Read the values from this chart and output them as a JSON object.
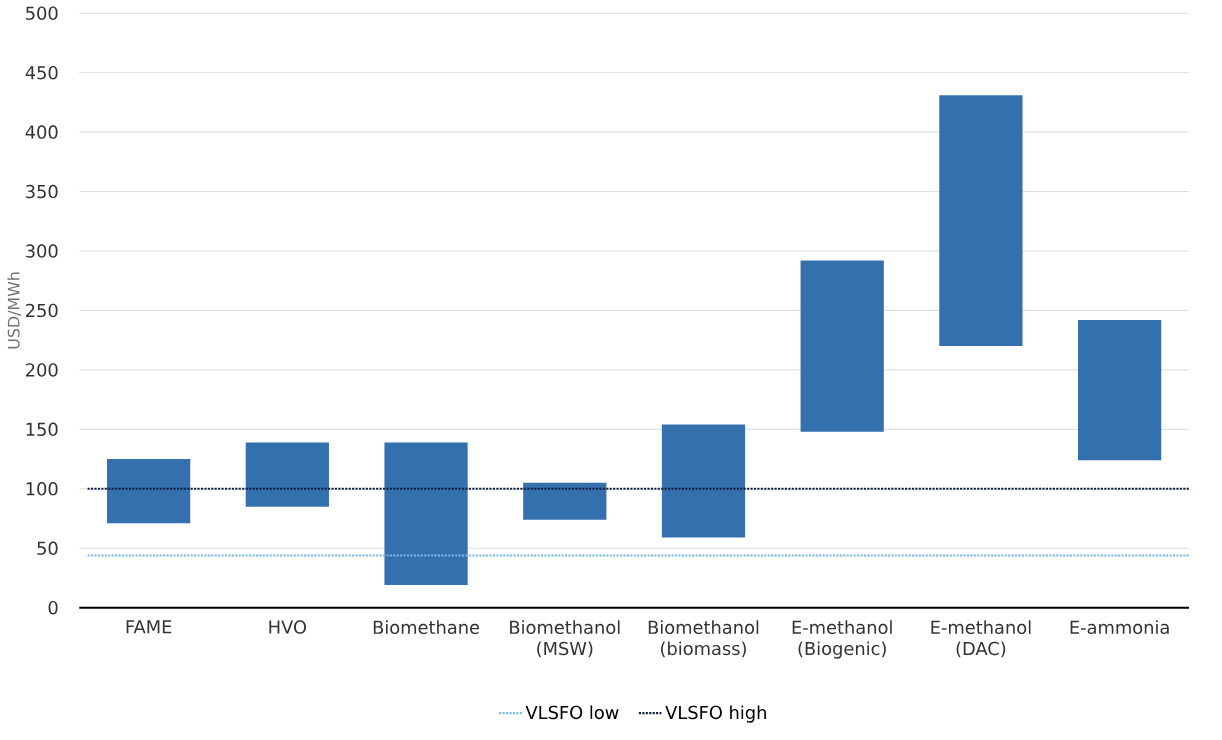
{
  "chart_data": {
    "type": "bar",
    "ylabel": "USD/MWh",
    "categories": [
      "FAME",
      "HVO",
      "Biomethane",
      "Biomethanol (MSW)",
      "Biomethanol (biomass)",
      "E-methanol (Biogenic)",
      "E-methanol (DAC)",
      "E-ammonia"
    ],
    "base": [
      71,
      85,
      19,
      74,
      59,
      148,
      220,
      124
    ],
    "values": [
      54,
      54,
      120,
      31,
      95,
      144,
      211,
      118
    ],
    "color": "#3470ae",
    "ylim": [
      0,
      500
    ],
    "yticks": [
      0,
      50,
      100,
      150,
      200,
      250,
      300,
      350,
      400,
      450,
      500
    ],
    "grid": "y",
    "legend": "bottom",
    "ref_lines": [
      {
        "axis": "y",
        "value": 44,
        "label": "VLSFO low",
        "color": "#7ab8e8",
        "line_style": "dotted"
      },
      {
        "axis": "y",
        "value": 100,
        "label": "VLSFO high",
        "color": "#0b1e3f",
        "line_style": "dotted"
      }
    ]
  }
}
